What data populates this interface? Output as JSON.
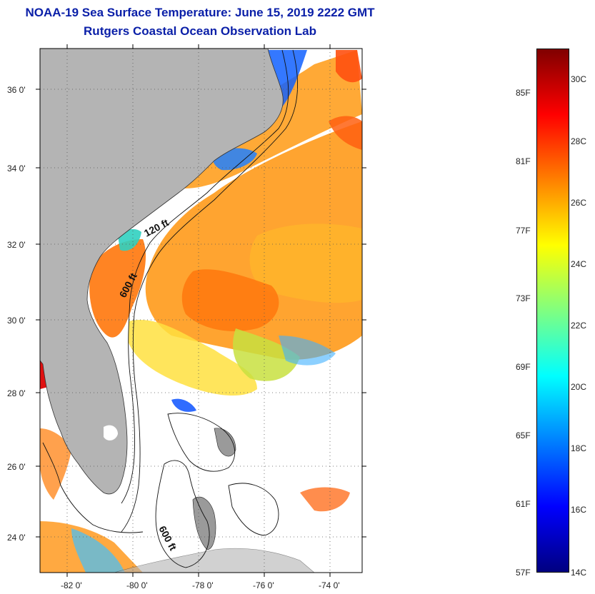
{
  "title_line1": "NOAA-19 Sea Surface Temperature:  June 15, 2019 2222 GMT",
  "title_line2": "Rutgers Coastal Ocean Observation Lab",
  "map": {
    "lon_labels": [
      "-82 0'",
      "-80 0'",
      "-78 0'",
      "-76 0'",
      "-74 0'"
    ],
    "lat_labels": [
      "36 0'",
      "34 0'",
      "32 0'",
      "30 0'",
      "28 0'",
      "26 0'",
      "24 0'"
    ],
    "contour_labels": [
      "120 ft",
      "600 ft",
      "600 ft"
    ],
    "land_color": "#b4b4b4",
    "ocean_nodata_color": "#ffffff"
  },
  "colorbar": {
    "fahrenheit_labels": [
      "85F",
      "81F",
      "77F",
      "73F",
      "69F",
      "65F",
      "61F",
      "57F"
    ],
    "celsius_labels": [
      "30C",
      "28C",
      "26C",
      "24C",
      "22C",
      "20C",
      "18C",
      "16C",
      "14C"
    ],
    "colors": [
      "#800000",
      "#ff0000",
      "#ff8000",
      "#ffff00",
      "#80ff80",
      "#00ffff",
      "#0080ff",
      "#0000ff",
      "#000080"
    ]
  }
}
